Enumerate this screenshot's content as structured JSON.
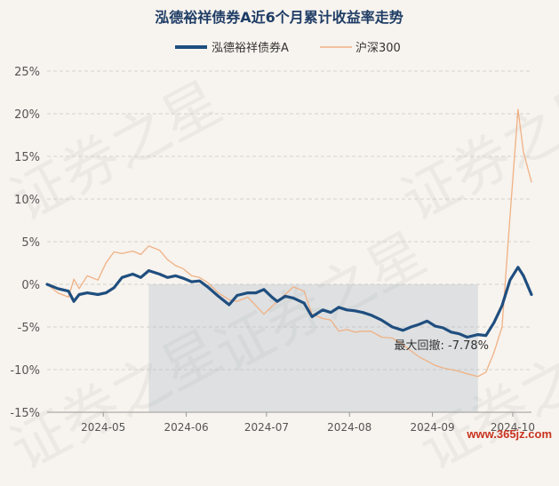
{
  "watermark_text": "证券之星",
  "site_mark": "www.365jz.com",
  "chart_data": {
    "type": "line",
    "title": "泓德裕祥债券A近6个月累计收益率走势",
    "xlabel": "",
    "ylabel": "",
    "x_ticks": [
      "2024-05",
      "2024-06",
      "2024-07",
      "2024-08",
      "2024-09",
      "2024-10"
    ],
    "y_ticks": [
      "25%",
      "20%",
      "15%",
      "10%",
      "5%",
      "0%",
      "-5%",
      "-10%",
      "-15%"
    ],
    "ylim": [
      -15,
      25
    ],
    "xlim": [
      "2024-04-10",
      "2024-10-08"
    ],
    "grid": true,
    "legend": "top-center",
    "series": [
      {
        "name": "泓德裕祥债券A",
        "color": "#1f4e7f",
        "x": [
          "2024-04-10",
          "2024-04-14",
          "2024-04-18",
          "2024-04-20",
          "2024-04-22",
          "2024-04-25",
          "2024-04-29",
          "2024-05-02",
          "2024-05-05",
          "2024-05-08",
          "2024-05-12",
          "2024-05-15",
          "2024-05-18",
          "2024-05-22",
          "2024-05-25",
          "2024-05-28",
          "2024-05-31",
          "2024-06-03",
          "2024-06-06",
          "2024-06-09",
          "2024-06-13",
          "2024-06-17",
          "2024-06-20",
          "2024-06-24",
          "2024-06-27",
          "2024-06-30",
          "2024-07-03",
          "2024-07-05",
          "2024-07-08",
          "2024-07-11",
          "2024-07-15",
          "2024-07-18",
          "2024-07-22",
          "2024-07-25",
          "2024-07-28",
          "2024-07-31",
          "2024-08-03",
          "2024-08-06",
          "2024-08-09",
          "2024-08-13",
          "2024-08-17",
          "2024-08-21",
          "2024-08-24",
          "2024-08-27",
          "2024-08-30",
          "2024-09-02",
          "2024-09-05",
          "2024-09-08",
          "2024-09-11",
          "2024-09-14",
          "2024-09-18",
          "2024-09-21",
          "2024-09-24",
          "2024-09-27",
          "2024-09-30",
          "2024-10-03",
          "2024-10-05",
          "2024-10-08"
        ],
        "values": [
          0,
          -0.5,
          -0.8,
          -2.0,
          -1.2,
          -1.0,
          -1.2,
          -1.0,
          -0.4,
          0.8,
          1.2,
          0.8,
          1.6,
          1.2,
          0.8,
          1.0,
          0.7,
          0.3,
          0.4,
          -0.3,
          -1.4,
          -2.4,
          -1.3,
          -1.0,
          -1.0,
          -0.6,
          -1.5,
          -2.0,
          -1.4,
          -1.6,
          -2.2,
          -3.8,
          -3.0,
          -3.3,
          -2.7,
          -3.0,
          -3.1,
          -3.3,
          -3.6,
          -4.2,
          -5.0,
          -5.4,
          -5.0,
          -4.7,
          -4.3,
          -4.9,
          -5.1,
          -5.6,
          -5.8,
          -6.2,
          -5.9,
          -6.0,
          -4.5,
          -2.5,
          0.5,
          2.0,
          1.0,
          -1.2
        ]
      },
      {
        "name": "沪深300",
        "color": "#f0b184",
        "x": [
          "2024-04-10",
          "2024-04-14",
          "2024-04-18",
          "2024-04-20",
          "2024-04-22",
          "2024-04-25",
          "2024-04-29",
          "2024-05-02",
          "2024-05-05",
          "2024-05-08",
          "2024-05-12",
          "2024-05-15",
          "2024-05-18",
          "2024-05-22",
          "2024-05-25",
          "2024-05-28",
          "2024-05-31",
          "2024-06-03",
          "2024-06-06",
          "2024-06-09",
          "2024-06-13",
          "2024-06-17",
          "2024-06-20",
          "2024-06-24",
          "2024-06-27",
          "2024-06-30",
          "2024-07-03",
          "2024-07-05",
          "2024-07-08",
          "2024-07-11",
          "2024-07-15",
          "2024-07-18",
          "2024-07-22",
          "2024-07-25",
          "2024-07-28",
          "2024-07-31",
          "2024-08-03",
          "2024-08-06",
          "2024-08-09",
          "2024-08-13",
          "2024-08-17",
          "2024-08-21",
          "2024-08-24",
          "2024-08-27",
          "2024-08-30",
          "2024-09-02",
          "2024-09-05",
          "2024-09-08",
          "2024-09-11",
          "2024-09-14",
          "2024-09-18",
          "2024-09-21",
          "2024-09-24",
          "2024-09-27",
          "2024-09-30",
          "2024-10-03",
          "2024-10-05",
          "2024-10-08"
        ],
        "values": [
          0,
          -1.0,
          -1.5,
          0.6,
          -0.5,
          1.0,
          0.5,
          2.5,
          3.8,
          3.6,
          3.9,
          3.5,
          4.5,
          4.0,
          2.9,
          2.2,
          1.8,
          1.0,
          0.8,
          0.2,
          -1.0,
          -1.8,
          -2.0,
          -1.5,
          -2.5,
          -3.5,
          -2.6,
          -2.0,
          -1.2,
          -0.3,
          -0.8,
          -3.5,
          -4.0,
          -4.2,
          -5.5,
          -5.3,
          -5.6,
          -5.5,
          -5.5,
          -6.2,
          -6.3,
          -7.1,
          -7.8,
          -8.5,
          -9.0,
          -9.5,
          -9.8,
          -10.0,
          -10.2,
          -10.5,
          -10.8,
          -10.3,
          -8.0,
          -5.0,
          8.0,
          20.5,
          15.5,
          12.0
        ]
      }
    ],
    "max_drawdown": {
      "label": "最大回撤: -7.78%",
      "start": "2024-05-18",
      "end": "2024-09-18"
    }
  }
}
